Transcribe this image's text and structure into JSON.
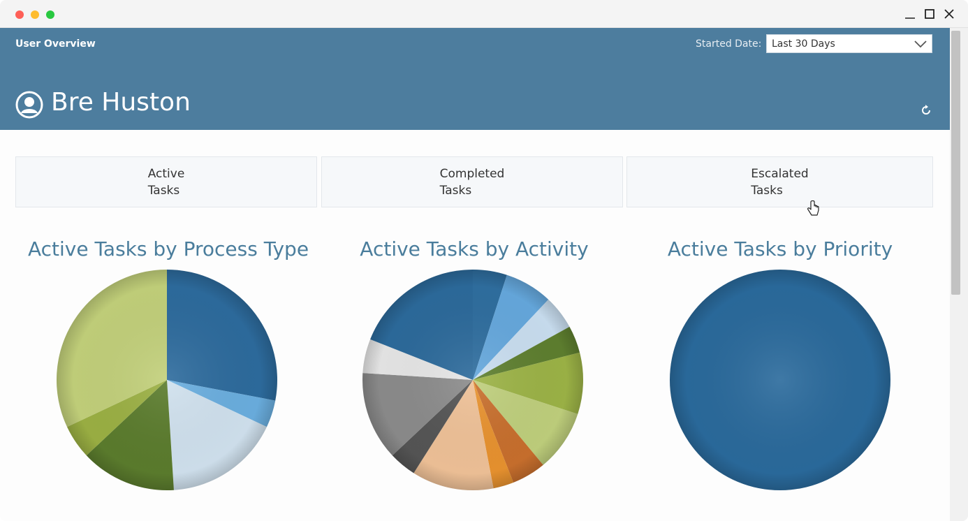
{
  "header": {
    "section_label": "User Overview",
    "date_label": "Started Date:",
    "date_value": "Last 30 Days",
    "user_name": "Bre Huston"
  },
  "cards": [
    {
      "line1": "Active",
      "line2": "Tasks"
    },
    {
      "line1": "Completed",
      "line2": "Tasks"
    },
    {
      "line1": "Escalated",
      "line2": "Tasks"
    }
  ],
  "colors": {
    "header_bg": "#4d7d9e",
    "title_color": "#4a7d9c"
  },
  "icons": [
    "user-circle-icon",
    "chevron-down-icon",
    "refresh-icon",
    "hand-cursor-icon",
    "minimize-icon",
    "maximize-icon",
    "close-icon"
  ],
  "chart_data": [
    {
      "type": "pie",
      "title": "Active Tasks by Process Type",
      "values": [
        28,
        4,
        17,
        14,
        5,
        32
      ],
      "colors": [
        "#2d6b9d",
        "#6aaedf",
        "#d0e1ee",
        "#5b7c2d",
        "#9bb043",
        "#c2d07a"
      ]
    },
    {
      "type": "pie",
      "title": "Active Tasks by Activity",
      "values": [
        5,
        7,
        5,
        4,
        9,
        9,
        5,
        3,
        12,
        4,
        13,
        5,
        19
      ],
      "colors": [
        "#2f6e9f",
        "#65a8dd",
        "#c9def0",
        "#5e7f2f",
        "#9cb346",
        "#bfcf7c",
        "#c86f2d",
        "#e8922f",
        "#efc197",
        "#555555",
        "#8b8b8b",
        "#e6e6e6",
        "#2c6a9b"
      ]
    },
    {
      "type": "pie",
      "title": "Active Tasks by Priority",
      "values": [
        100
      ],
      "colors": [
        "#2a6a9c"
      ]
    }
  ]
}
